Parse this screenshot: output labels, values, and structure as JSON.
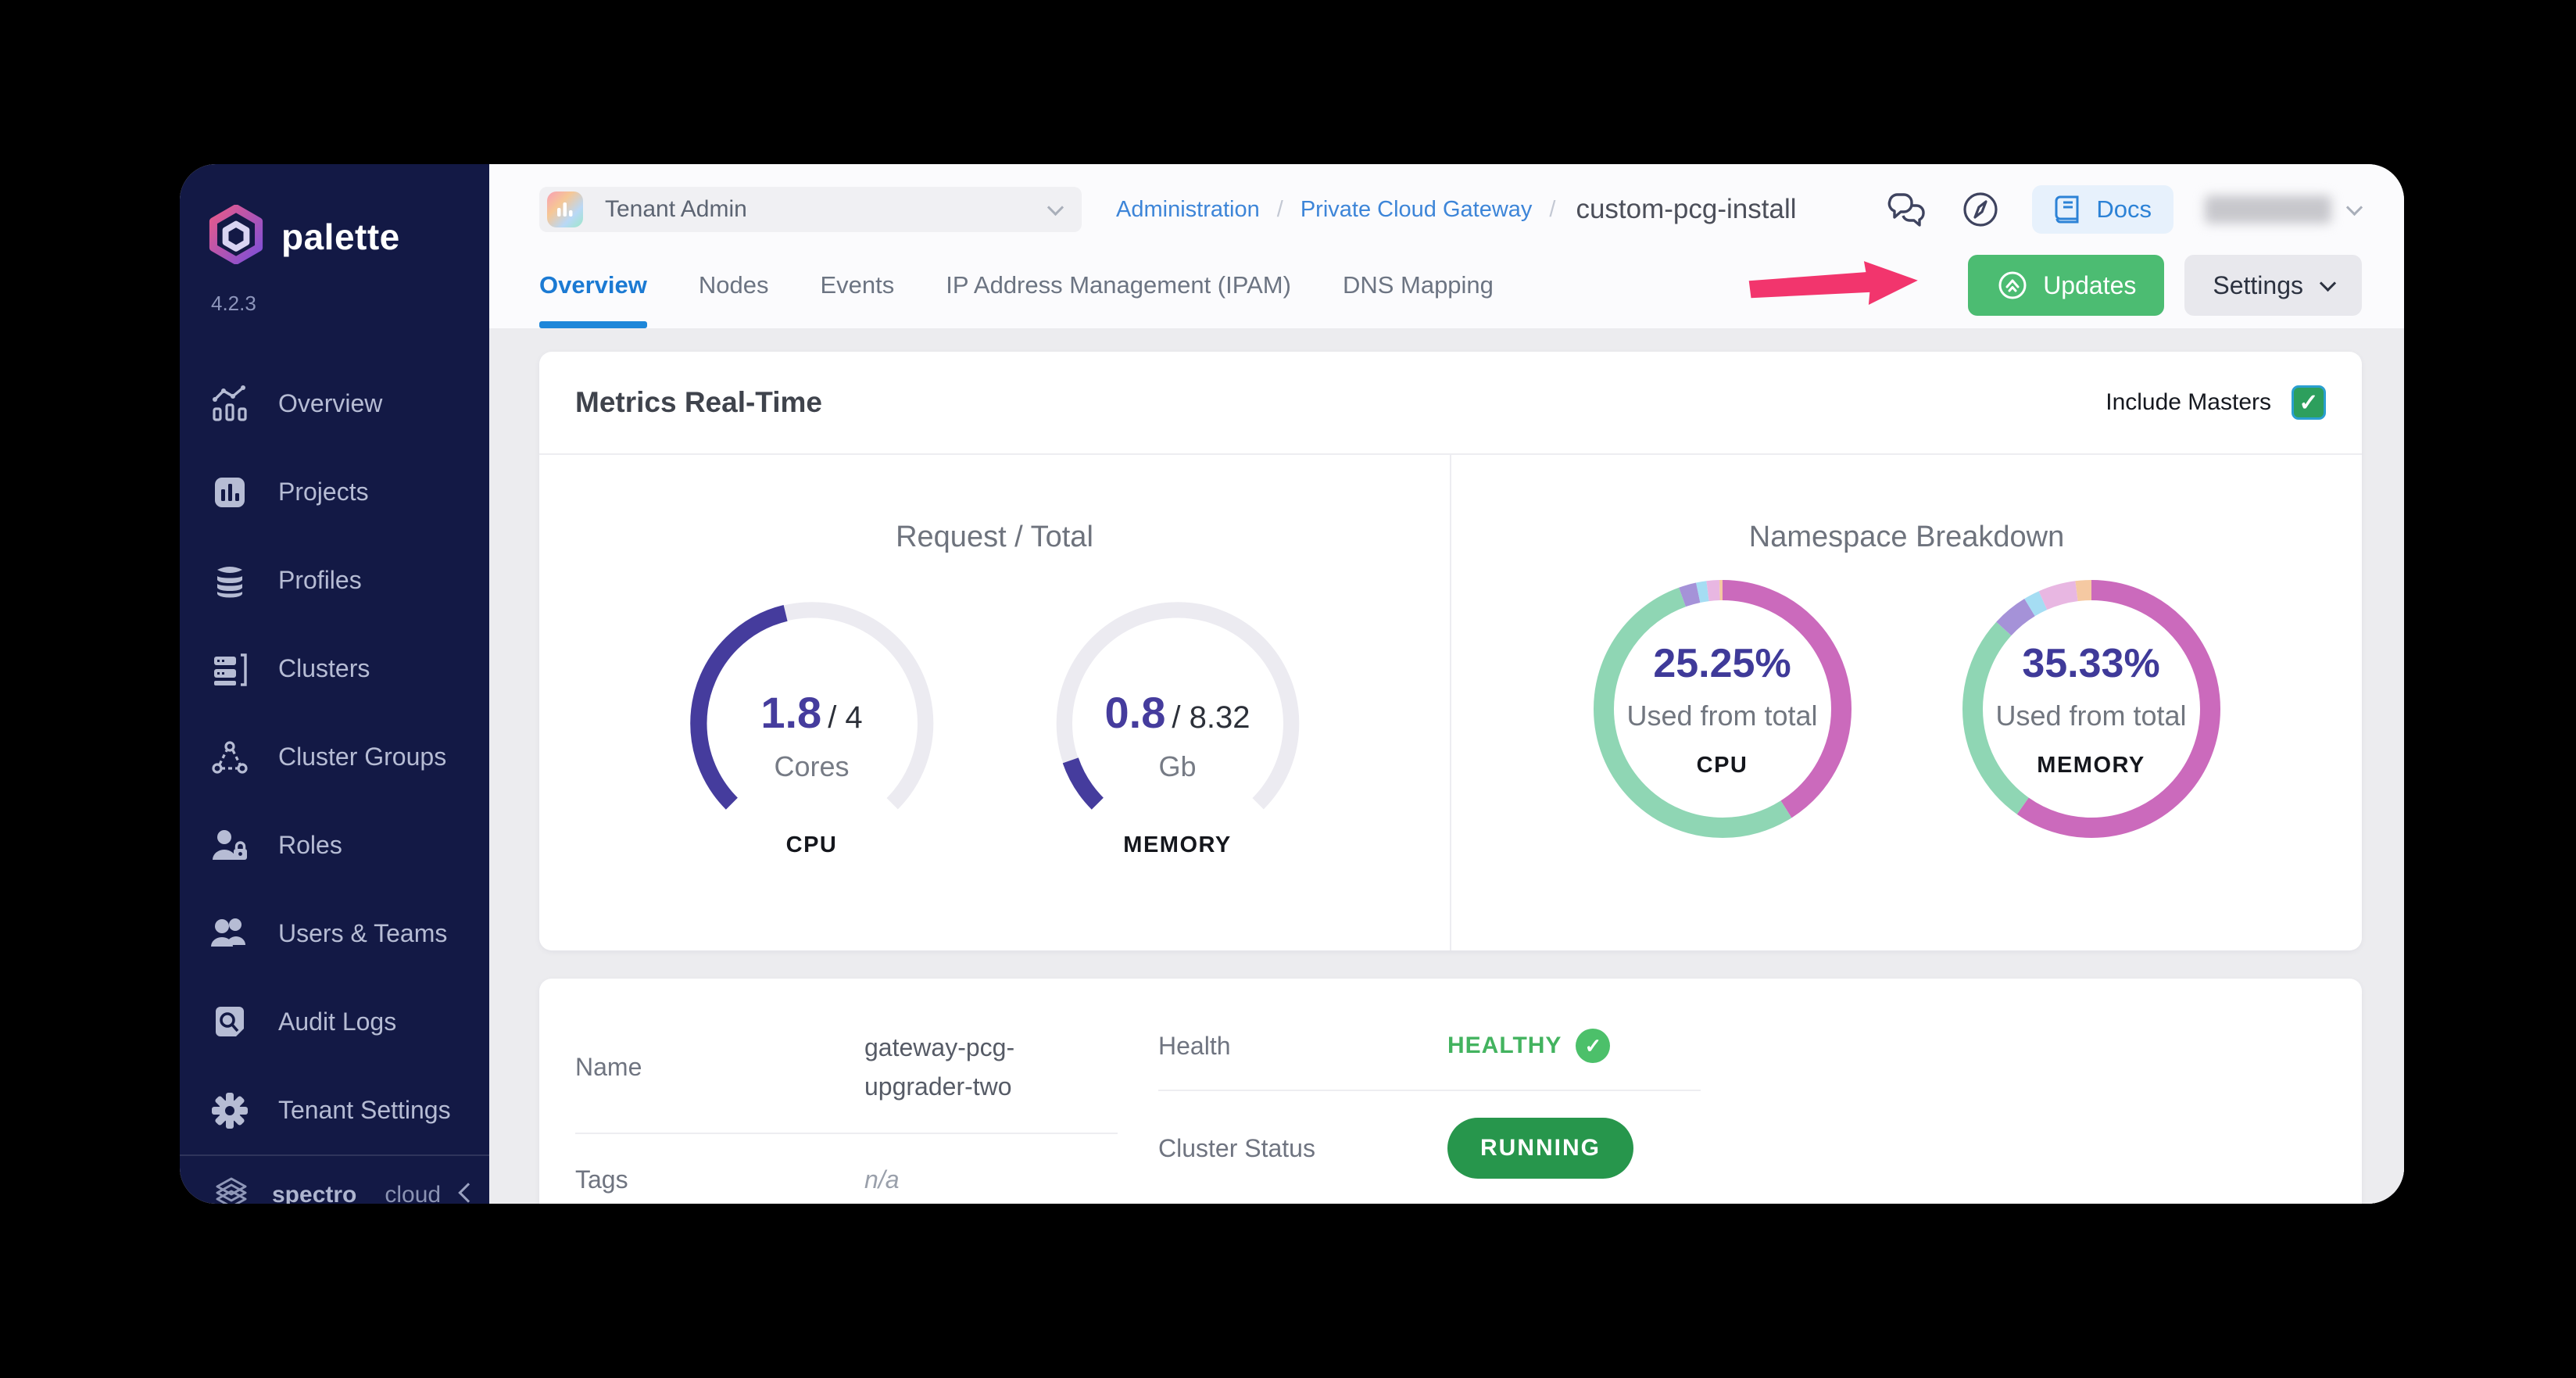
{
  "colors": {
    "canvas": "#000000",
    "sidebar_bg": "#131945",
    "accent_blue": "#1B7AD3",
    "link_blue": "#3D85D8",
    "green_button": "#4CBC72",
    "green_badge": "#27964C",
    "healthy_green": "#43B35F",
    "gauge_indigo": "#453C9D",
    "donut_pink": "#CB6ABC",
    "donut_teal": "#8FD6B4",
    "annotation_pink": "#F2356D",
    "content_bg": "#ECECEF"
  },
  "sidebar": {
    "brand": "palette",
    "version": "4.2.3",
    "items": [
      {
        "label": "Overview",
        "icon": "overview-chart-icon"
      },
      {
        "label": "Projects",
        "icon": "projects-icon"
      },
      {
        "label": "Profiles",
        "icon": "profiles-icon"
      },
      {
        "label": "Clusters",
        "icon": "clusters-icon"
      },
      {
        "label": "Cluster Groups",
        "icon": "cluster-groups-icon"
      },
      {
        "label": "Roles",
        "icon": "roles-icon"
      },
      {
        "label": "Users & Teams",
        "icon": "users-teams-icon"
      },
      {
        "label": "Audit Logs",
        "icon": "audit-logs-icon"
      },
      {
        "label": "Tenant Settings",
        "icon": "tenant-settings-icon"
      }
    ],
    "footer": {
      "brand_primary": "spectro",
      "brand_secondary": "cloud"
    }
  },
  "topbar": {
    "scope_selector": {
      "label": "Tenant Admin"
    },
    "breadcrumb": [
      {
        "label": "Administration",
        "type": "link"
      },
      {
        "label": "Private Cloud Gateway",
        "type": "link"
      },
      {
        "label": "custom-pcg-install",
        "type": "current"
      }
    ],
    "docs_label": "Docs"
  },
  "tabs": [
    {
      "label": "Overview",
      "active": true
    },
    {
      "label": "Nodes",
      "active": false
    },
    {
      "label": "Events",
      "active": false
    },
    {
      "label": "IP Address Management (IPAM)",
      "active": false
    },
    {
      "label": "DNS Mapping",
      "active": false
    }
  ],
  "page_actions": {
    "updates_label": "Updates",
    "settings_label": "Settings",
    "annotation_arrow": {
      "color": "#F2356D",
      "points_to": "Updates"
    }
  },
  "metrics_card": {
    "title": "Metrics Real-Time",
    "include_masters_label": "Include Masters",
    "include_masters_checked": true,
    "sections": [
      {
        "title": "Request / Total"
      },
      {
        "title": "Namespace Breakdown"
      }
    ]
  },
  "chart_data": [
    {
      "type": "gauge",
      "name": "cpu-request",
      "label": "CPU",
      "value": 1.8,
      "total": 4,
      "value_display": "1.8",
      "total_display": "/ 4",
      "unit": "Cores",
      "arc_degrees": 270,
      "fill_color": "#453C9D",
      "track_color": "#ECEBF1"
    },
    {
      "type": "gauge",
      "name": "memory-request",
      "label": "MEMORY",
      "value": 0.8,
      "total": 8.32,
      "value_display": "0.8",
      "total_display": "/ 8.32",
      "unit": "Gb",
      "arc_degrees": 270,
      "fill_color": "#453C9D",
      "track_color": "#ECEBF1"
    },
    {
      "type": "donut",
      "name": "cpu-namespace",
      "label": "CPU",
      "percent": 25.25,
      "percent_display": "25.25%",
      "subtitle": "Used from total",
      "segments": [
        {
          "name": "used",
          "pct": 41,
          "color": "#CB6ABC"
        },
        {
          "name": "available",
          "pct": 53.5,
          "color": "#8FD6B4"
        },
        {
          "name": "namespace-purple",
          "pct": 2.2,
          "color": "#A592D8"
        },
        {
          "name": "namespace-blue",
          "pct": 1.3,
          "color": "#A5DDF3"
        },
        {
          "name": "namespace-lavender",
          "pct": 1.6,
          "color": "#E8B7E2"
        },
        {
          "name": "namespace-peach",
          "pct": 0.4,
          "color": "#F5C9A2"
        }
      ]
    },
    {
      "type": "donut",
      "name": "memory-namespace",
      "label": "MEMORY",
      "percent": 35.33,
      "percent_display": "35.33%",
      "subtitle": "Used from total",
      "segments": [
        {
          "name": "used",
          "pct": 59.8,
          "color": "#CB6ABC"
        },
        {
          "name": "available",
          "pct": 27,
          "color": "#8FD6B4"
        },
        {
          "name": "namespace-purple",
          "pct": 4.5,
          "color": "#A592D8"
        },
        {
          "name": "namespace-blue",
          "pct": 2,
          "color": "#A5DDF3"
        },
        {
          "name": "namespace-lavender",
          "pct": 4.7,
          "color": "#E8B7E2"
        },
        {
          "name": "namespace-peach",
          "pct": 2,
          "color": "#F5C9A2"
        }
      ]
    }
  ],
  "details_card": {
    "left_rows": [
      {
        "label": "Name",
        "value": "gateway-pcg-upgrader-two"
      },
      {
        "label": "Tags",
        "value": "n/a"
      }
    ],
    "right_rows": [
      {
        "label": "Health",
        "value": "HEALTHY"
      },
      {
        "label": "Cluster Status",
        "value": "RUNNING"
      }
    ]
  }
}
